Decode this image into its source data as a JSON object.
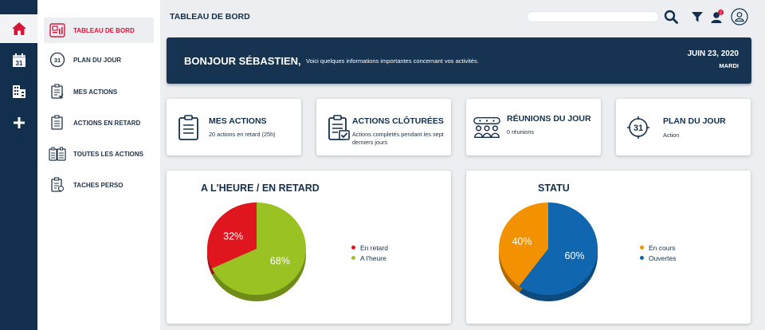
{
  "header": {
    "title": "TABLEAU DE BORD"
  },
  "subnav": [
    {
      "label": "TABLEAU DE BORD",
      "icon": "dashboard-icon",
      "active": true
    },
    {
      "label": "PLAN DU JOUR",
      "icon": "calendar-31-icon",
      "active": false
    },
    {
      "label": "MES ACTIONS",
      "icon": "checklist-icon",
      "active": false
    },
    {
      "label": "ACTIONS EN RETARD",
      "icon": "late-checklist-icon",
      "active": false
    },
    {
      "label": "TOUTES LES ACTIONS",
      "icon": "all-actions-icon",
      "active": false
    },
    {
      "label": "TACHES PERSO",
      "icon": "personal-tasks-icon",
      "active": false
    }
  ],
  "rail": [
    "home-icon",
    "calendar-icon",
    "building-icon",
    "plus-icon"
  ],
  "topbar": {
    "search_value": "",
    "notification_count": "2",
    "icons": [
      "search-icon",
      "filter-icon",
      "user-notification-icon",
      "profile-icon"
    ]
  },
  "banner": {
    "greeting": "BONJOUR SÉBASTIEN,",
    "subtitle": "Voici quelques informations importantes concernant vos activités.",
    "date": "JUIN 23, 2020",
    "day": "MARDI"
  },
  "cards": [
    {
      "title": "MES ACTIONS",
      "subtitle": "20 actions en retard (25h)",
      "icon": "clipboard-icon"
    },
    {
      "title": "ACTIONS CLÔTURÉES",
      "subtitle": "Actions completés pendant les sept derniers jours",
      "icon": "clipboard-check-icon"
    },
    {
      "title": "RÉUNIONS DU JOUR",
      "subtitle": "0 réunions",
      "icon": "meeting-icon"
    },
    {
      "title": "PLAN DU JOUR",
      "subtitle": "Action",
      "icon": "plan-31-icon"
    }
  ],
  "colors": {
    "navy": "#12304d",
    "accent": "#d8163b",
    "late": "#e0161f",
    "ontime": "#9ac223",
    "in_progress": "#f39200",
    "open": "#1067b0"
  },
  "chart_data": [
    {
      "type": "pie",
      "title": "A L'HEURE / EN RETARD",
      "legend_position": "right",
      "slices": [
        {
          "label": "En retard",
          "value": 32,
          "display": "32%",
          "color": "#e0161f"
        },
        {
          "label": "A l'heure",
          "value": 68,
          "display": "68%",
          "color": "#9ac223"
        }
      ]
    },
    {
      "type": "pie",
      "title": "STATU",
      "legend_position": "right",
      "slices": [
        {
          "label": "En cours",
          "value": 40,
          "display": "40%",
          "color": "#f39200"
        },
        {
          "label": "Ouvertes",
          "value": 60,
          "display": "60%",
          "color": "#1067b0"
        }
      ]
    }
  ]
}
